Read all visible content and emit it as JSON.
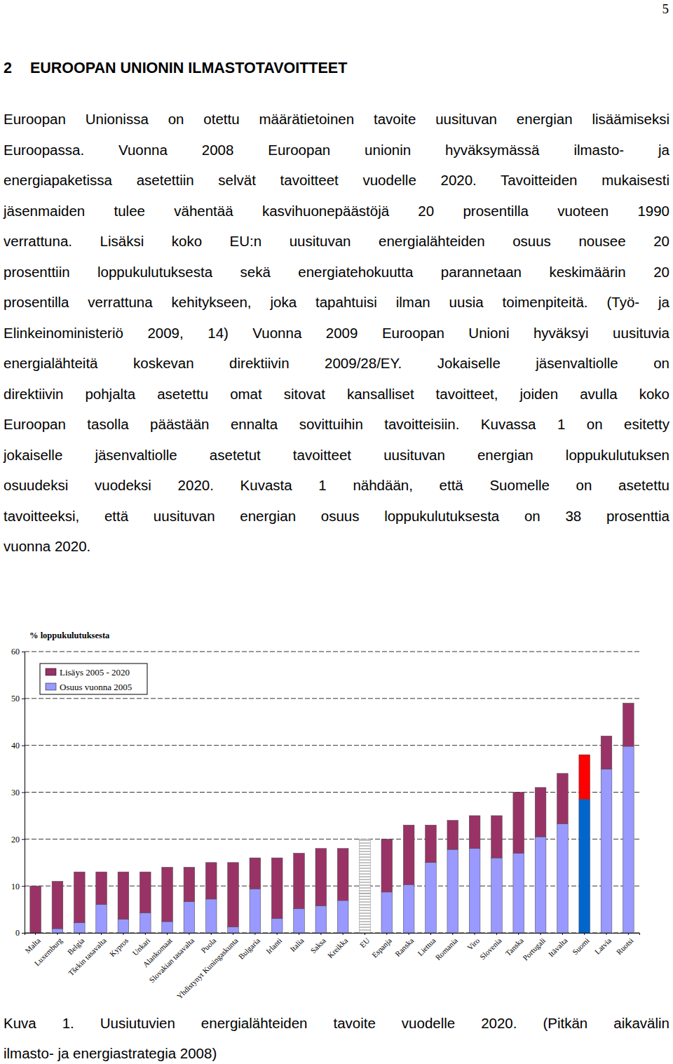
{
  "page": {
    "page_number": "5",
    "heading_number": "2",
    "heading_text": "EUROOPAN UNIONIN ILMASTOTAVOITTEET",
    "paragraph_lines": [
      "Euroopan Unionissa on otettu määrätietoinen tavoite uusituvan energian lisäämiseksi",
      "Euroopassa. Vuonna 2008 Euroopan unionin hyväksymässä ilmasto- ja",
      "energiapaketissa asetettiin selvät tavoitteet vuodelle 2020. Tavoitteiden mukaisesti",
      "jäsenmaiden tulee vähentää kasvihuonepäästöjä 20 prosentilla vuoteen 1990",
      "verrattuna. Lisäksi koko EU:n uusituvan energialähteiden osuus nousee 20",
      "prosenttiin loppukulutuksesta sekä energiatehokuutta parannetaan keskimäärin 20",
      "prosentilla verrattuna kehitykseen, joka tapahtuisi ilman uusia toimenpiteitä. (Työ- ja",
      "Elinkeinoministeriö 2009, 14) Vuonna 2009 Euroopan Unioni hyväksyi uusituvia",
      "energialähteitä koskevan direktiivin 2009/28/EY. Jokaiselle jäsenvaltiolle on",
      "direktiivin pohjalta asetettu omat sitovat kansalliset tavoitteet, joiden avulla koko",
      "Euroopan tasolla päästään ennalta sovittuihin tavoitteisiin. Kuvassa 1 on esitetty",
      "jokaiselle jäsenvaltiolle asetetut tavoitteet uusituvan energian loppukulutuksen",
      "osuudeksi vuodeksi 2020. Kuvasta 1 nähdään, että Suomelle on asetettu",
      "tavoitteeksi, että uusituvan energian osuus loppukulutuksesta on 38 prosenttia",
      "vuonna 2020."
    ],
    "caption_lines": [
      "Kuva 1. Uusiutuvien energialähteiden tavoite vuodelle 2020. (Pitkän aikavälin",
      "ilmasto- ja energiastrategia 2008)"
    ]
  },
  "chart_data": {
    "type": "bar",
    "stacked": true,
    "y_label": "% loppukulutuksesta",
    "categories": [
      "Malta",
      "Luxemburg",
      "Belgia",
      "Tšekin tasavalta",
      "Kypros",
      "Unkari",
      "Alankomaat",
      "Slovakian tasavalta",
      "Puola",
      "Yhdistynyt Kuningaskunta",
      "Bulgaria",
      "Irlanti",
      "Italia",
      "Saksa",
      "Kreikka",
      "EU",
      "Espanja",
      "Ranska",
      "Liettua",
      "Romania",
      "Viro",
      "Slovenia",
      "Tanska",
      "Portugali",
      "Itävalta",
      "Suomi",
      "Latvia",
      "Ruotsi"
    ],
    "series": [
      {
        "name": "Osuus vuonna 2005",
        "color": "#9999ff",
        "colors": [
          "#9999ff",
          "#9999ff",
          "#9999ff",
          "#9999ff",
          "#9999ff",
          "#9999ff",
          "#9999ff",
          "#9999ff",
          "#9999ff",
          "#9999ff",
          "#9999ff",
          "#9999ff",
          "#9999ff",
          "#9999ff",
          "#9999ff",
          "#ffffff",
          "#9999ff",
          "#9999ff",
          "#9999ff",
          "#9999ff",
          "#9999ff",
          "#9999ff",
          "#9999ff",
          "#9999ff",
          "#9999ff",
          "#0066cc",
          "#9999ff",
          "#9999ff"
        ],
        "values": [
          0,
          0.9,
          2.2,
          6.1,
          2.9,
          4.3,
          2.4,
          6.7,
          7.2,
          1.3,
          9.4,
          3.1,
          5.2,
          5.8,
          6.9,
          8.5,
          8.7,
          10.3,
          15,
          17.8,
          18,
          16,
          17,
          20.5,
          23.3,
          28.5,
          34.9,
          39.8
        ]
      },
      {
        "name": "Lisäys 2005 - 2020",
        "color": "#993366",
        "colors": [
          "#993366",
          "#993366",
          "#993366",
          "#993366",
          "#993366",
          "#993366",
          "#993366",
          "#993366",
          "#993366",
          "#993366",
          "#993366",
          "#993366",
          "#993366",
          "#993366",
          "#993366",
          "#ffffff",
          "#993366",
          "#993366",
          "#993366",
          "#993366",
          "#993366",
          "#993366",
          "#993366",
          "#993366",
          "#993366",
          "#ff0000",
          "#993366",
          "#993366"
        ],
        "values": [
          10,
          10.1,
          10.8,
          6.9,
          10.1,
          8.7,
          11.6,
          7.3,
          7.8,
          13.7,
          6.6,
          12.9,
          11.8,
          12.2,
          11.1,
          11.5,
          11.3,
          12.7,
          8,
          6.2,
          7,
          9,
          13,
          10.5,
          10.7,
          9.5,
          7.1,
          9.2
        ]
      }
    ],
    "ylim": [
      0,
      60
    ],
    "yticks": [
      0,
      10,
      20,
      30,
      40,
      50,
      60
    ],
    "grid": true,
    "legend": "top-left"
  }
}
